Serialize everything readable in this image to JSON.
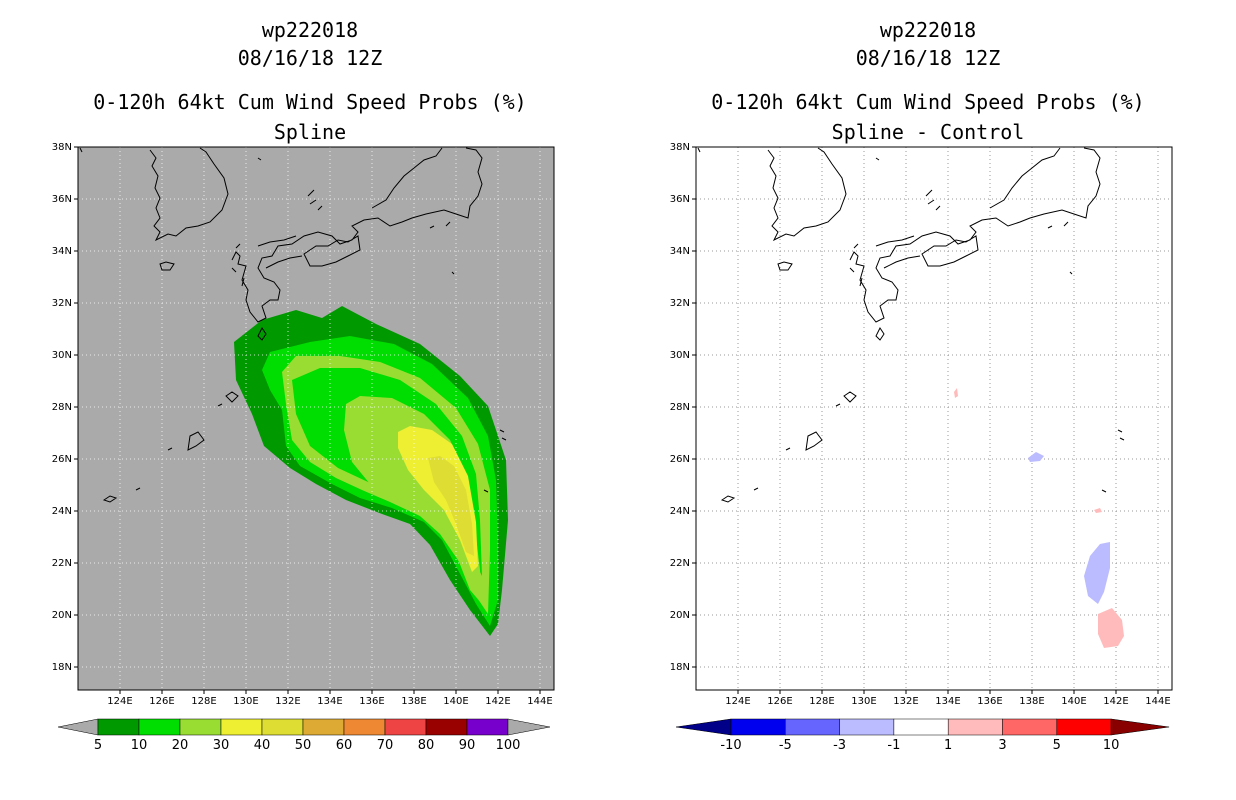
{
  "left_panel": {
    "title_lines": [
      "wp222018",
      "08/16/18 12Z",
      "0-120h 64kt Cum Wind Speed Probs (%)",
      "Spline"
    ],
    "colorbar": {
      "colors": [
        "#009900",
        "#00dd00",
        "#99dd33",
        "#eeee33",
        "#dddd33",
        "#ddaa33",
        "#ee8833",
        "#ee4444",
        "#990000",
        "#7700cc"
      ],
      "labels": [
        "5",
        "10",
        "20",
        "30",
        "40",
        "50",
        "60",
        "70",
        "80",
        "90",
        "100"
      ]
    },
    "background_color": "#aaaaaa"
  },
  "right_panel": {
    "title_lines": [
      "wp222018",
      "08/16/18 12Z",
      "0-120h 64kt Cum Wind Speed Probs (%)",
      "Spline - Control"
    ],
    "colorbar": {
      "colors": [
        "#0000ee",
        "#6666ff",
        "#bbbbff",
        "#ffffff",
        "#ffbbbb",
        "#ff6666",
        "#ff0000"
      ],
      "end_left": "#000088",
      "end_right": "#880000",
      "labels": [
        "-10",
        "-5",
        "-3",
        "-1",
        "1",
        "3",
        "5",
        "10"
      ]
    },
    "background_color": "#ffffff"
  },
  "map": {
    "lat_labels": [
      "38N",
      "36N",
      "34N",
      "32N",
      "30N",
      "28N",
      "26N",
      "24N",
      "22N",
      "20N",
      "18N"
    ],
    "lon_labels": [
      "124E",
      "126E",
      "128E",
      "130E",
      "132E",
      "134E",
      "136E",
      "138E",
      "140E",
      "142E",
      "144E"
    ]
  }
}
